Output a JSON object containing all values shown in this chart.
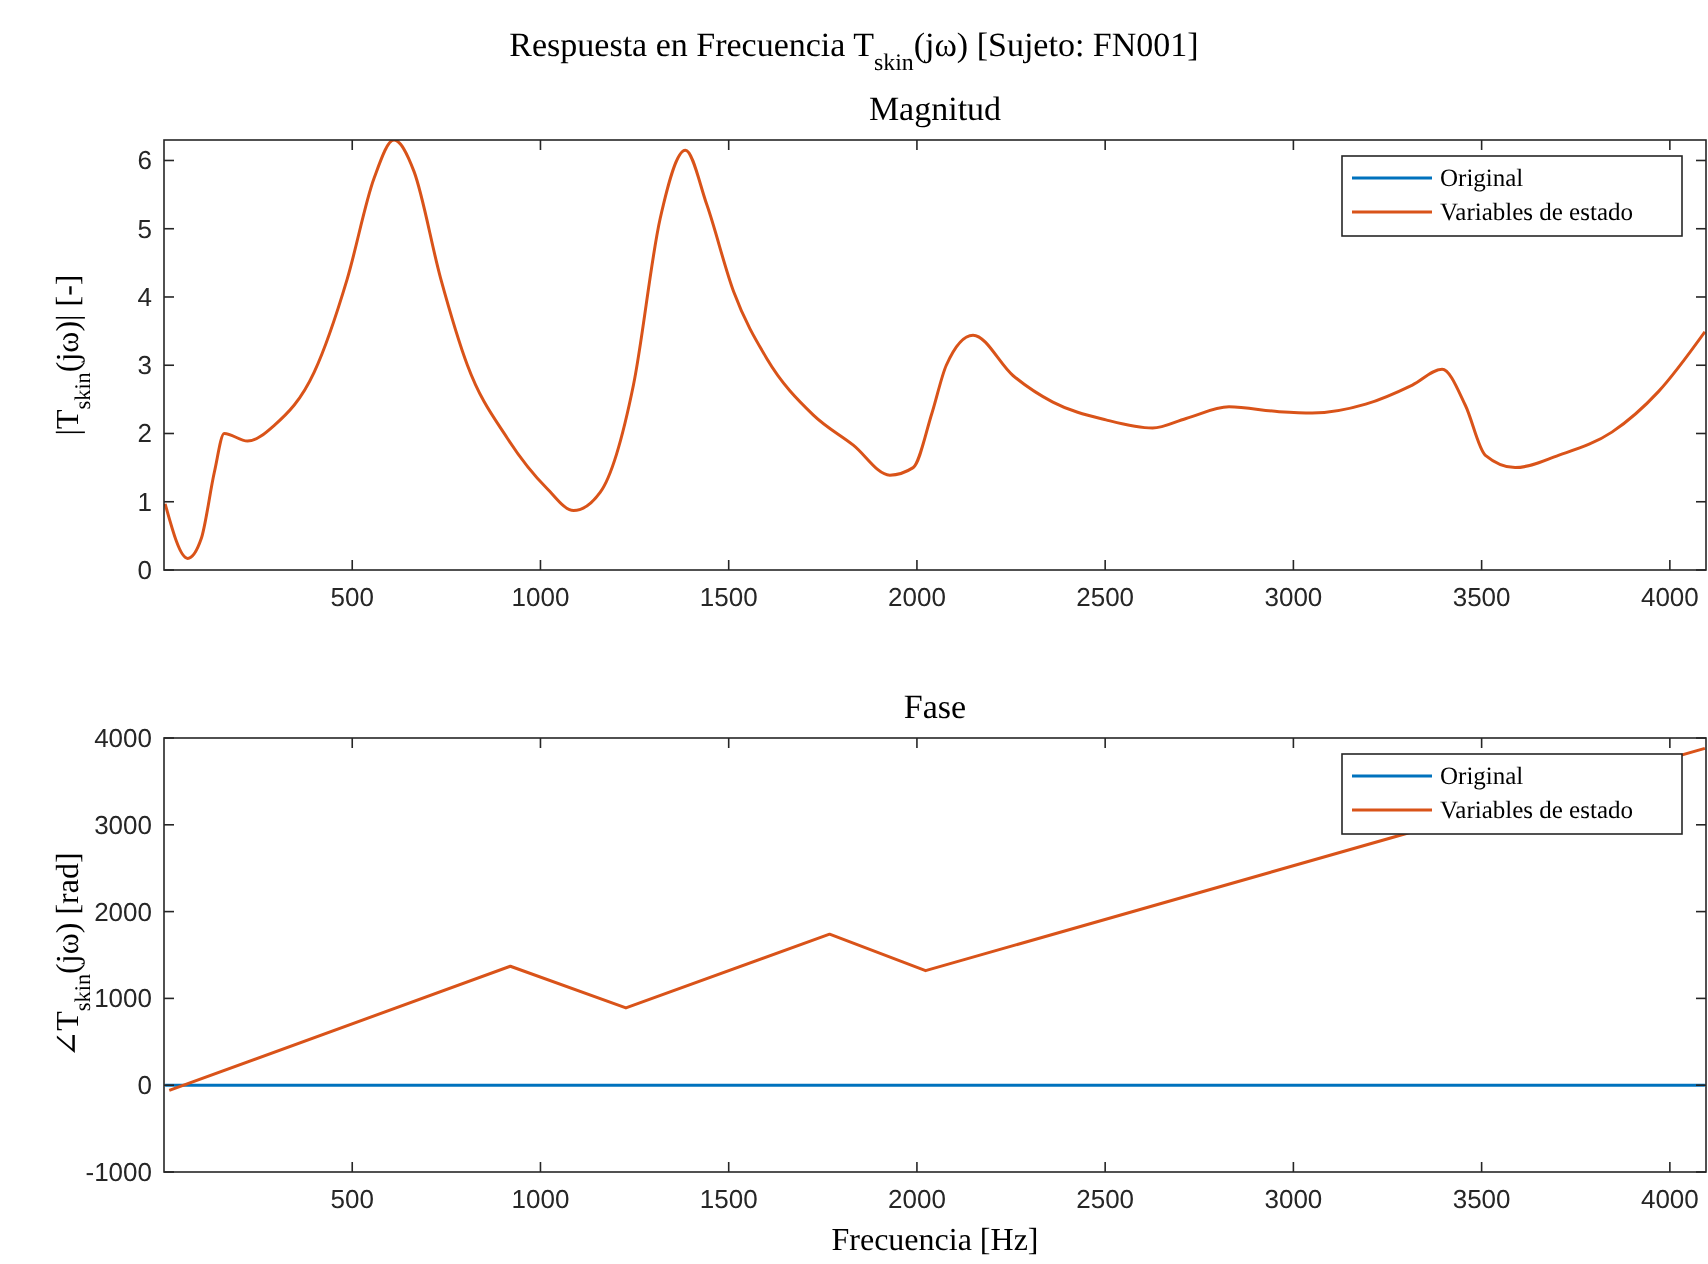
{
  "chart_data": [
    {
      "type": "line",
      "title": "Respuesta en Frecuencia T$_{skin}$(jω) [Sujeto: FN001]",
      "subtitle": "Magnitud",
      "ylabel": "|T$_{skin}$(jω)| [-]",
      "xlim": [
        0,
        4096
      ],
      "xticks": [
        500,
        1000,
        1500,
        2000,
        2500,
        3000,
        3500,
        4000
      ],
      "ylim": [
        0,
        6.3
      ],
      "yticks": [
        0,
        1,
        2,
        3,
        4,
        5,
        6
      ],
      "legend": "top right",
      "grid": false,
      "line_style": "solid",
      "marker": "none",
      "x": [
        3,
        63,
        99,
        134,
        160,
        222,
        293,
        399,
        487,
        558,
        611,
        664,
        735,
        806,
        912,
        1018,
        1088,
        1159,
        1247,
        1318,
        1385,
        1442,
        1513,
        1601,
        1725,
        1831,
        1928,
        1990,
        2040,
        2078,
        2149,
        2255,
        2361,
        2502,
        2626,
        2715,
        2829,
        2962,
        3050,
        3192,
        3316,
        3395,
        3457,
        3510,
        3589,
        3704,
        3846,
        3969,
        4093
      ],
      "series": [
        {
          "name": "Original",
          "color": "#0072bd",
          "values": [
            null,
            null,
            null,
            null,
            null,
            null,
            null,
            null,
            null,
            null,
            null,
            null,
            null,
            null,
            null,
            null,
            null,
            null,
            null,
            null,
            null,
            null,
            null,
            null,
            null,
            null,
            null,
            null,
            null,
            null,
            null,
            null,
            null,
            null,
            null,
            null,
            null,
            null,
            null,
            null,
            null,
            null,
            null,
            null,
            null,
            null,
            null,
            null,
            null
          ]
        },
        {
          "name": "Variables de estado",
          "color": "#d95319",
          "values": [
            0.97,
            0.17,
            0.46,
            1.44,
            2.0,
            1.89,
            2.12,
            2.9,
            4.27,
            5.74,
            6.3,
            5.84,
            4.27,
            3.0,
            1.93,
            1.19,
            0.87,
            1.14,
            2.71,
            5.15,
            6.15,
            5.35,
            4.08,
            3.1,
            2.27,
            1.83,
            1.39,
            1.5,
            2.3,
            3.0,
            3.44,
            2.85,
            2.46,
            2.2,
            2.08,
            2.22,
            2.39,
            2.32,
            2.3,
            2.43,
            2.71,
            2.94,
            2.41,
            1.68,
            1.5,
            1.68,
            2.02,
            2.61,
            3.49
          ]
        }
      ]
    },
    {
      "type": "line",
      "title": "Fase",
      "xlabel": "Frecuencia [Hz]",
      "ylabel": "∠T$_{skin}$(jω) [rad]",
      "xlim": [
        0,
        4096
      ],
      "xticks": [
        500,
        1000,
        1500,
        2000,
        2500,
        3000,
        3500,
        4000
      ],
      "ylim": [
        -1000,
        4000
      ],
      "yticks": [
        -1000,
        0,
        1000,
        2000,
        3000,
        4000
      ],
      "legend": "top right",
      "grid": false,
      "line_style": "solid",
      "marker": "none",
      "series": [
        {
          "name": "Original",
          "color": "#0072bd",
          "x": [
            3,
            1000,
            2000,
            3000,
            4093
          ],
          "values": [
            0,
            0,
            0,
            0,
            0
          ]
        },
        {
          "name": "Variables de estado",
          "color": "#d95319",
          "x": [
            14,
            920,
            1227,
            1768,
            2023,
            4093
          ],
          "values": [
            -60,
            1370,
            890,
            1740,
            1320,
            3880
          ]
        }
      ]
    }
  ]
}
